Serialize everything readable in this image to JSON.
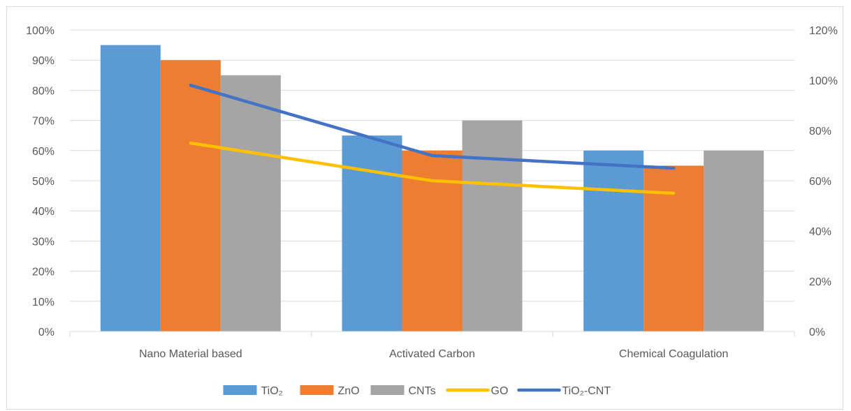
{
  "chart_data": {
    "type": "bar",
    "categories": [
      "Nano Material based",
      "Activated Carbon",
      "Chemical Coagulation"
    ],
    "series": [
      {
        "name": "TiO₂",
        "kind": "bar",
        "axis": "left",
        "color": "#5b9bd5",
        "values": [
          0.95,
          0.65,
          0.6
        ]
      },
      {
        "name": "ZnO",
        "kind": "bar",
        "axis": "left",
        "color": "#ed7d31",
        "values": [
          0.9,
          0.6,
          0.55
        ]
      },
      {
        "name": "CNTs",
        "kind": "bar",
        "axis": "left",
        "color": "#a5a5a5",
        "values": [
          0.85,
          0.7,
          0.6
        ]
      },
      {
        "name": "GO",
        "kind": "line",
        "axis": "right",
        "color": "#ffc000",
        "values": [
          0.75,
          0.6,
          0.55
        ]
      },
      {
        "name": "TiO₂-CNT",
        "kind": "line",
        "axis": "right",
        "color": "#4472c4",
        "values": [
          0.98,
          0.7,
          0.65
        ]
      }
    ],
    "y_left": {
      "min": 0,
      "max": 1.0,
      "step": 0.1,
      "ticks": [
        "0%",
        "10%",
        "20%",
        "30%",
        "40%",
        "50%",
        "60%",
        "70%",
        "80%",
        "90%",
        "100%"
      ]
    },
    "y_right": {
      "min": 0,
      "max": 1.2,
      "step": 0.2,
      "ticks": [
        "0%",
        "20%",
        "40%",
        "60%",
        "80%",
        "100%",
        "120%"
      ]
    },
    "grid": true,
    "legend_position": "bottom",
    "title": "",
    "xlabel": "",
    "ylabel": ""
  }
}
